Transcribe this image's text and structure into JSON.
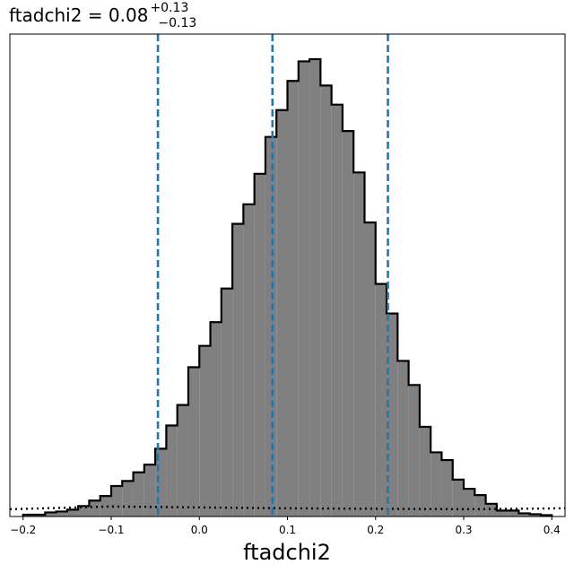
{
  "chart_data": {
    "type": "bar",
    "title": {
      "main": "ftadchi2 = 0.08",
      "upper": "+0.13",
      "lower": "−0.13"
    },
    "xlabel": "ftadchi2",
    "ylabel": "",
    "xlim": [
      -0.215,
      0.415
    ],
    "ylim": [
      0,
      1.06
    ],
    "xticks": [
      -0.2,
      -0.1,
      0.0,
      0.1,
      0.2,
      0.3,
      0.4
    ],
    "xtick_labels": [
      "−0.2",
      "−0.1",
      "0.0",
      "0.1",
      "0.2",
      "0.3",
      "0.4"
    ],
    "grid": false,
    "histogram": {
      "bin_start": -0.2,
      "bin_width": 0.0125,
      "fill_color": "#808080",
      "edge_color": "#000000",
      "counts": [
        0.004,
        0.004,
        0.009,
        0.011,
        0.015,
        0.023,
        0.035,
        0.045,
        0.067,
        0.078,
        0.097,
        0.114,
        0.149,
        0.2,
        0.245,
        0.328,
        0.375,
        0.427,
        0.501,
        0.643,
        0.686,
        0.753,
        0.834,
        0.893,
        0.957,
        1.0,
        1.005,
        0.947,
        0.905,
        0.847,
        0.756,
        0.646,
        0.511,
        0.446,
        0.342,
        0.289,
        0.197,
        0.141,
        0.124,
        0.081,
        0.061,
        0.047,
        0.028,
        0.013,
        0.013,
        0.007,
        0.005,
        0.003
      ]
    },
    "reference_lines": {
      "color": "#1f77b4",
      "style": "dashed",
      "values": [
        -0.047,
        0.083,
        0.214
      ]
    },
    "prior": {
      "color": "#000000",
      "style": "dotted",
      "x": [
        -0.215,
        -0.1,
        0.0,
        0.1,
        0.2,
        0.3,
        0.415
      ],
      "y": [
        0.016,
        0.022,
        0.02,
        0.018,
        0.017,
        0.016,
        0.018
      ]
    }
  }
}
